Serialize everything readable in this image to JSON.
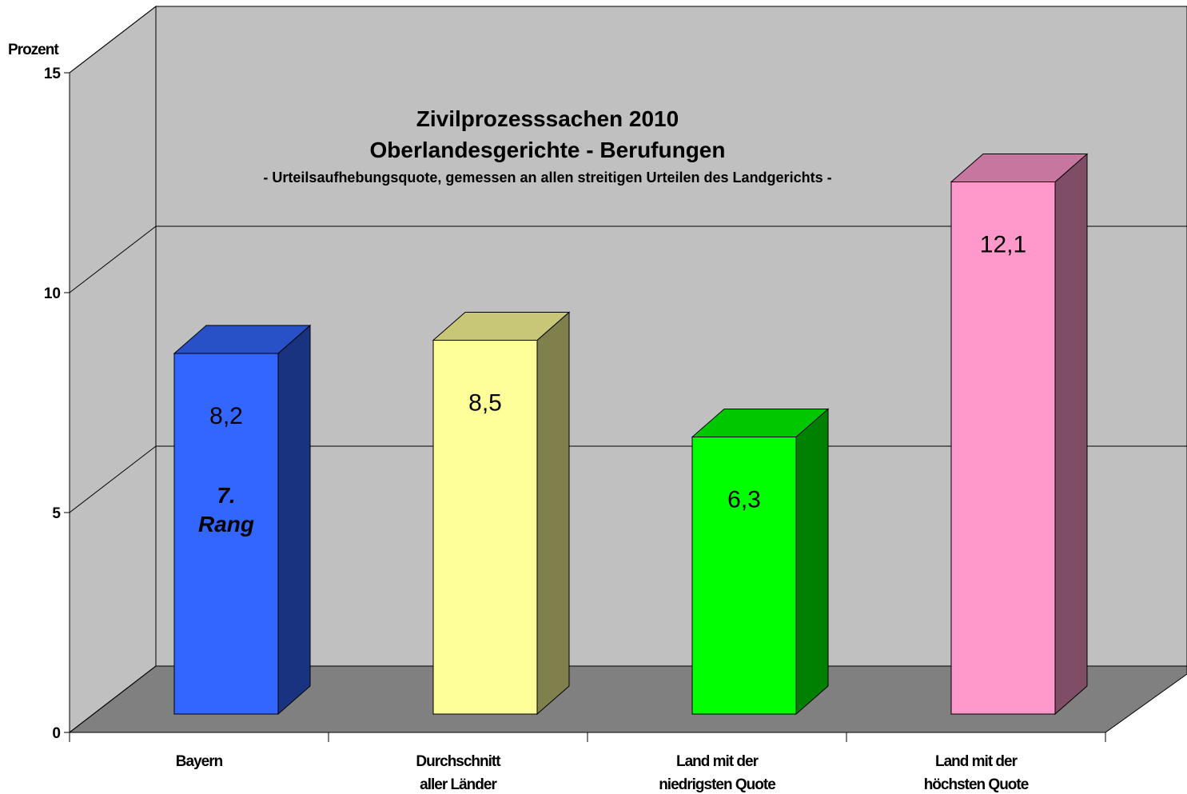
{
  "chart_data": {
    "type": "bar3d",
    "title": "Zivilprozesssachen 2010",
    "subtitle": "Oberlandesgerichte - Berufungen",
    "note": "- Urteilsaufhebungsquote, gemessen an allen streitigen Urteilen des Landgerichts -",
    "y_label": "Prozent",
    "categories": [
      "Bayern",
      "Durchschnitt\naller Länder",
      "Land mit der\nniedrigsten Quote",
      "Land mit der\nhöchsten Quote"
    ],
    "values": [
      8.2,
      8.5,
      6.3,
      12.1
    ],
    "value_labels": [
      "8,2",
      "8,5",
      "6,3",
      "12,1"
    ],
    "colors": [
      "#3366ff",
      "#ffff99",
      "#00ff00",
      "#ff99cc"
    ],
    "annotation": "7.\nRang",
    "ylim": [
      0,
      15
    ],
    "yticks": [
      0,
      5,
      10,
      15
    ],
    "grid": true
  }
}
